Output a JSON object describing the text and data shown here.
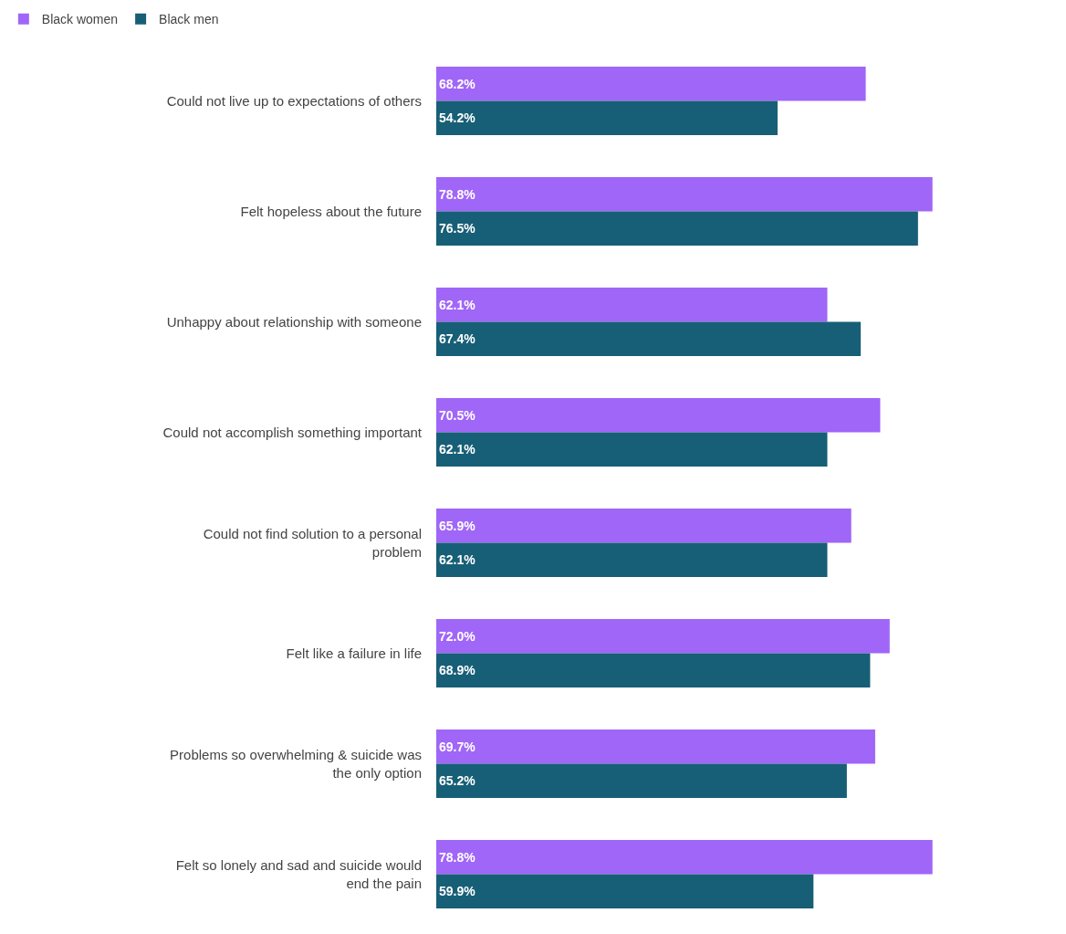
{
  "chart_data": {
    "type": "bar",
    "orientation": "horizontal",
    "categories": [
      "Could not live up to expectations of others",
      "Felt hopeless about the future",
      "Unhappy about relationship with someone",
      "Could not accomplish something important",
      "Could not find solution to a personal\nproblem",
      "Felt like a failure in life",
      "Problems so overwhelming & suicide was\nthe only option",
      "Felt so lonely and sad and suicide would\nend the pain"
    ],
    "series": [
      {
        "name": "Black women",
        "color": "#a066f7",
        "values": [
          68.2,
          78.8,
          62.1,
          70.5,
          65.9,
          72.0,
          69.7,
          78.8
        ],
        "value_labels": [
          "68.2%",
          "78.8%",
          "62.1%",
          "70.5%",
          "65.9%",
          "72.0%",
          "69.7%",
          "78.8%"
        ]
      },
      {
        "name": "Black men",
        "color": "#175f77",
        "values": [
          54.2,
          76.5,
          67.4,
          62.1,
          62.1,
          68.9,
          65.2,
          59.9
        ],
        "value_labels": [
          "54.2%",
          "76.5%",
          "67.4%",
          "62.1%",
          "62.1%",
          "68.9%",
          "65.2%",
          "59.9%"
        ]
      }
    ],
    "xlim": [
      0,
      100
    ],
    "tick_labels": "y",
    "legend": "top left"
  }
}
